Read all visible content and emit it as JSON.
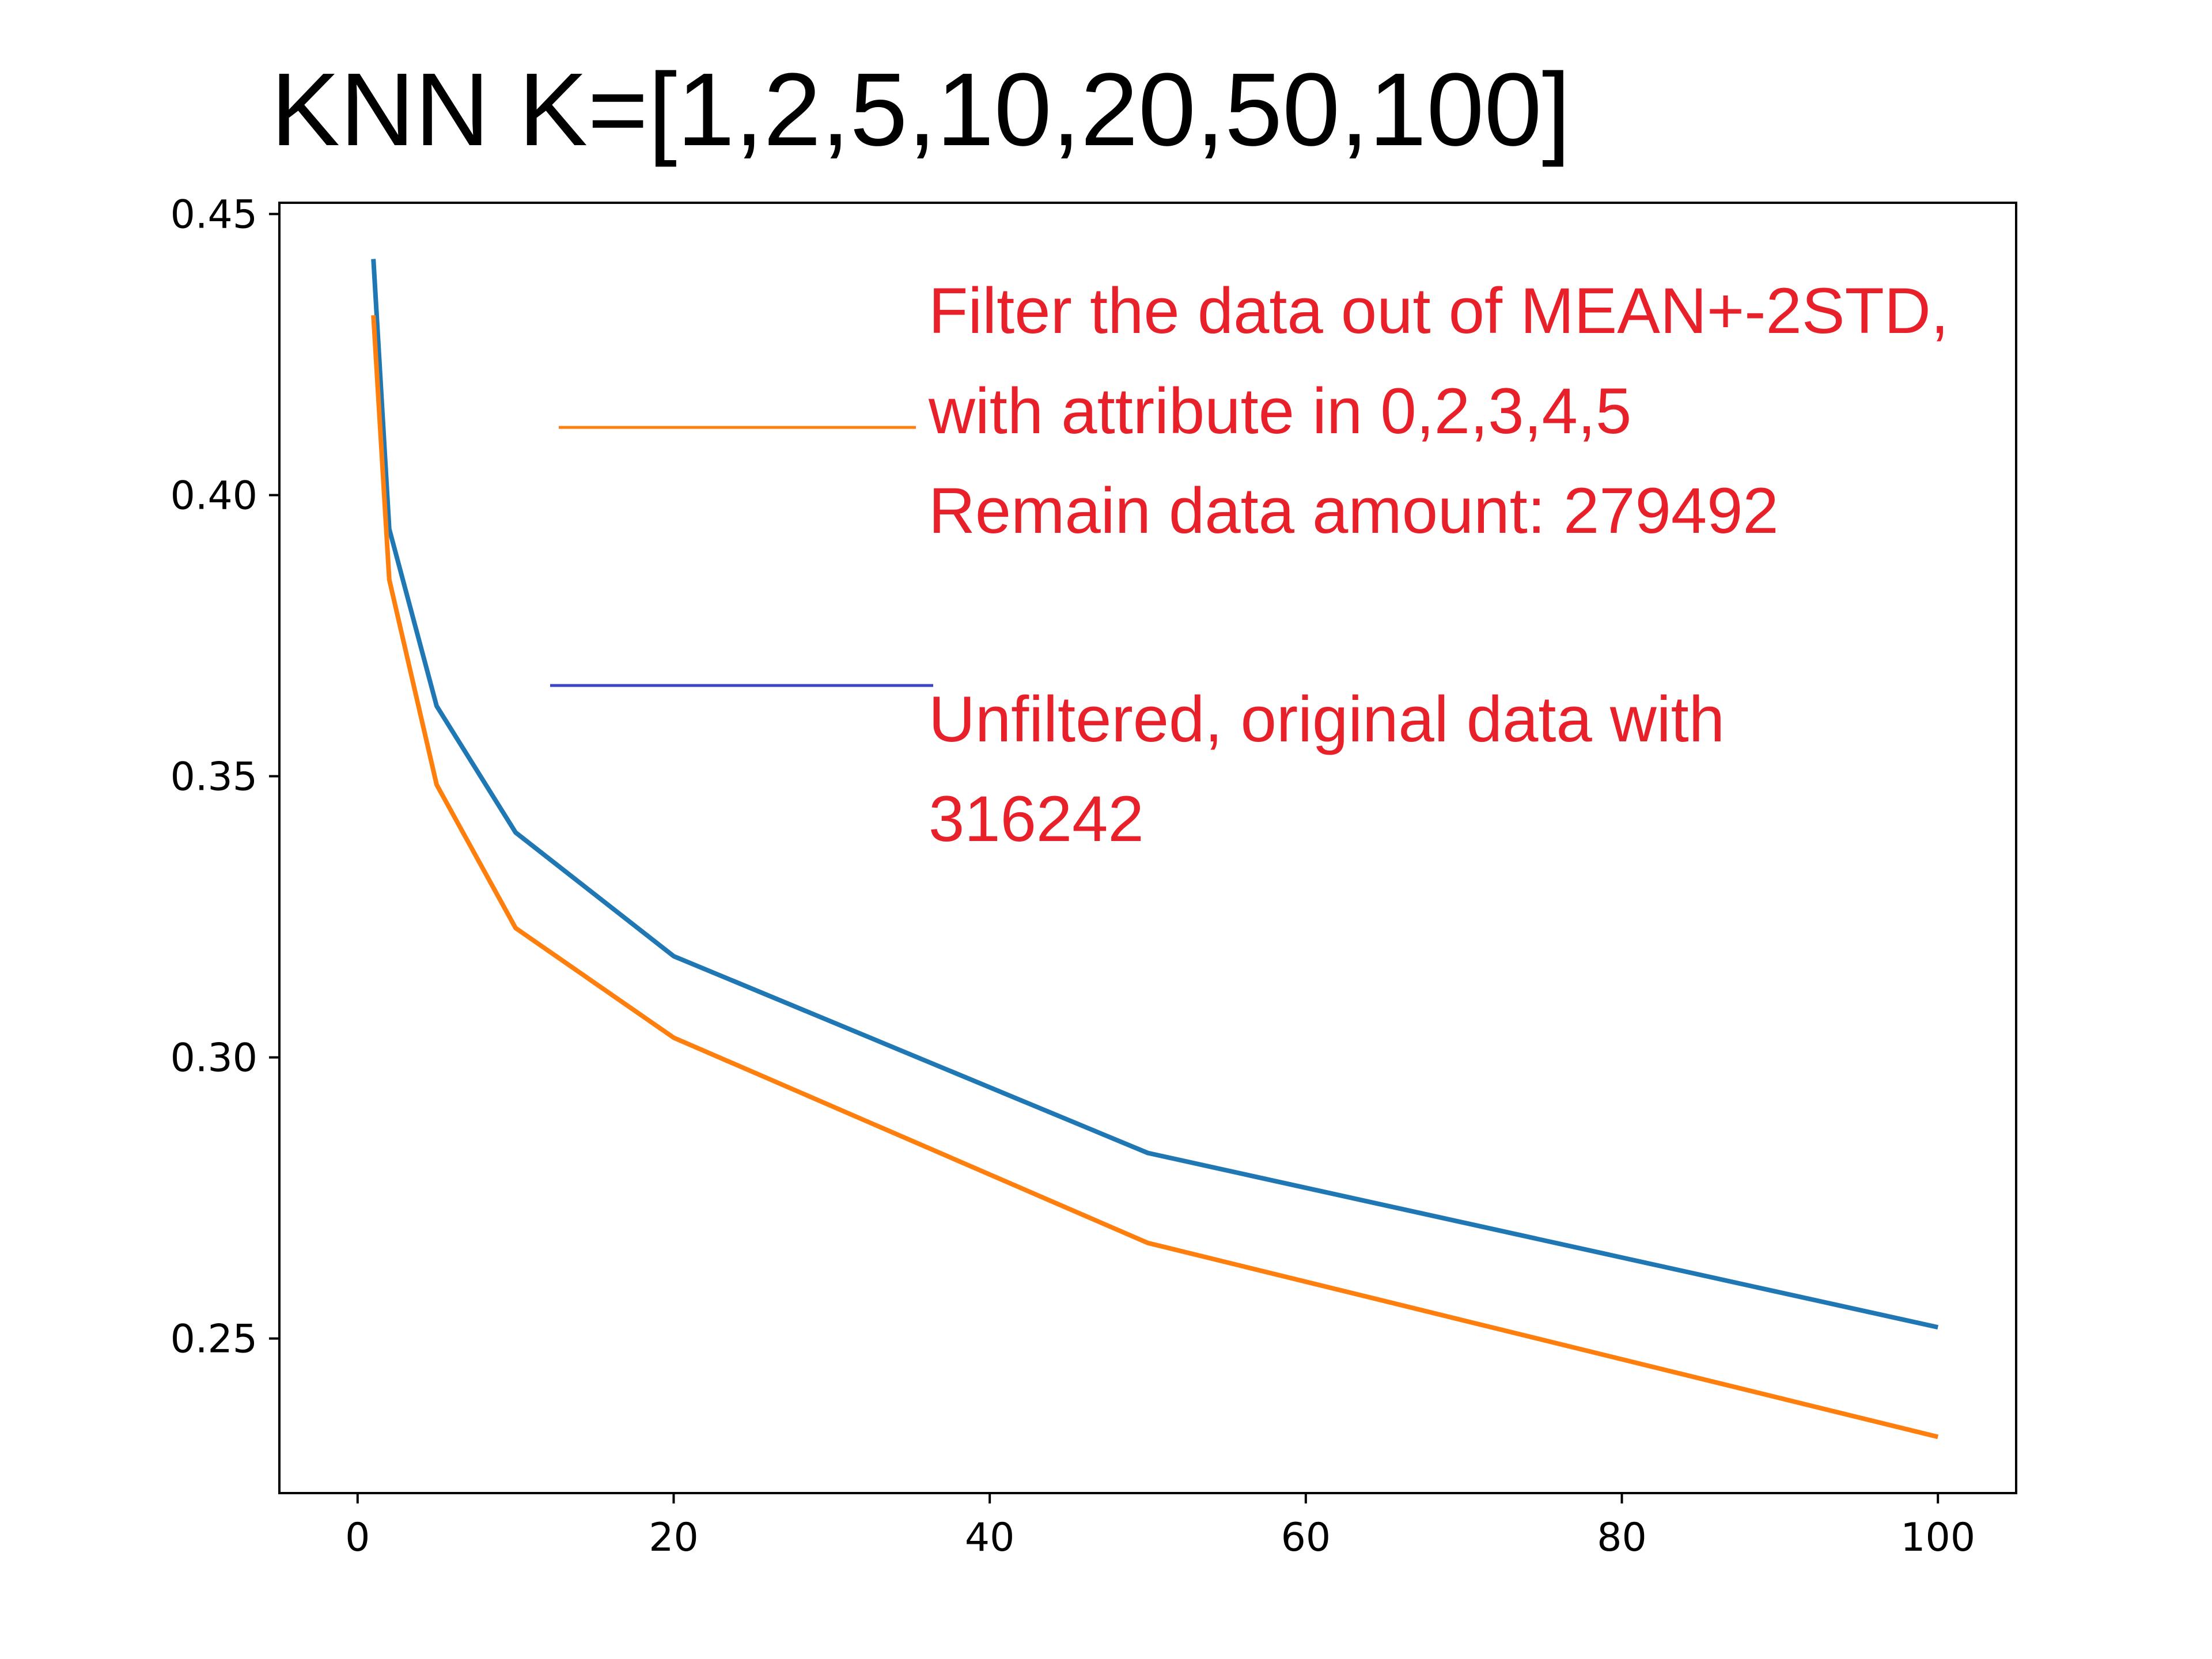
{
  "chart_data": {
    "type": "line",
    "title": "KNN K=[1,2,5,10,20,50,100]",
    "xlabel": "",
    "ylabel": "",
    "xlim": [
      -4.95,
      104.95
    ],
    "ylim": [
      0.2225,
      0.452
    ],
    "xticks": [
      0,
      20,
      40,
      60,
      80,
      100
    ],
    "yticks": [
      0.25,
      0.3,
      0.35,
      0.4,
      0.45
    ],
    "xtick_labels": [
      "0",
      "20",
      "40",
      "60",
      "80",
      "100"
    ],
    "ytick_labels": [
      "0.25",
      "0.30",
      "0.35",
      "0.40",
      "0.45"
    ],
    "x": [
      1,
      2,
      5,
      10,
      20,
      50,
      100
    ],
    "grid": false,
    "series": [
      {
        "color": "#1f77b4",
        "values": [
          0.442,
          0.394,
          0.3625,
          0.34,
          0.318,
          0.283,
          0.252
        ]
      },
      {
        "color": "#ff7f0e",
        "values": [
          0.432,
          0.385,
          0.3485,
          0.323,
          0.3035,
          0.267,
          0.2325
        ]
      }
    ],
    "annotations": [
      {
        "lines": [
          "Filter the data out of MEAN+-2STD,",
          "with attribute in 0,2,3,4,5",
          "Remain data amount: 279492"
        ],
        "color": "#e8202a",
        "line_color": "#ff7f0e"
      },
      {
        "lines": [
          "Unfiltered, original data with",
          "316242"
        ],
        "color": "#e8202a",
        "line_color": "#3a46c4"
      }
    ]
  }
}
